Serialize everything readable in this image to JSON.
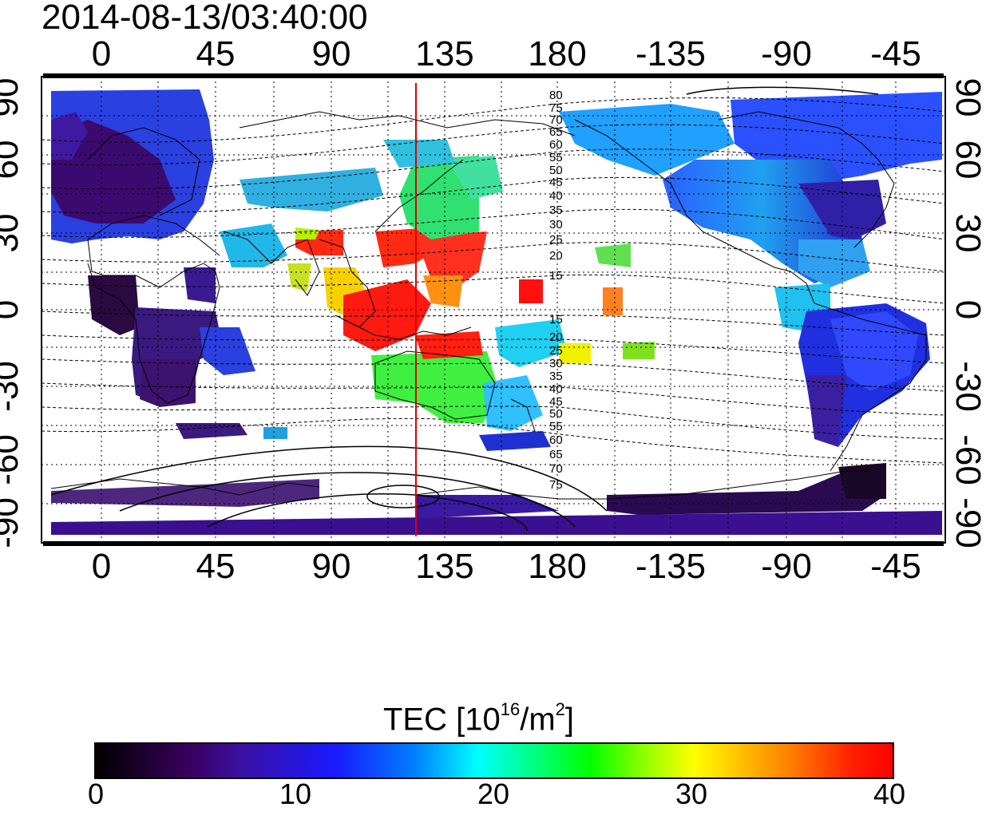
{
  "timestamp": "2014-08-13/03:40:00",
  "map": {
    "lon_ticks_top": [
      "0",
      "45",
      "90",
      "135",
      "180",
      "-135",
      "-90",
      "-45"
    ],
    "lon_ticks_bottom": [
      "0",
      "45",
      "90",
      "135",
      "180",
      "-135",
      "-90",
      "-45"
    ],
    "lat_ticks_left": [
      "90",
      "60",
      "30",
      "0",
      "-30",
      "-60",
      "-90"
    ],
    "lat_ticks_right": [
      "90",
      "60",
      "30",
      "0",
      "-30",
      "-60",
      "-90"
    ],
    "contour_labels_north": [
      "80",
      "75",
      "70",
      "65",
      "60",
      "55",
      "50",
      "45",
      "40",
      "35",
      "30",
      "25",
      "20",
      "15"
    ],
    "contour_labels_south": [
      "15",
      "20",
      "25",
      "30",
      "35",
      "40",
      "45",
      "50",
      "55",
      "60",
      "65",
      "70",
      "75"
    ],
    "marker_line_color": "#e00000"
  },
  "colorbar": {
    "title_prefix": "TEC  [10",
    "title_exp1": "16",
    "title_mid": "/m",
    "title_exp2": "2",
    "title_suffix": "]",
    "ticks": [
      "0",
      "10",
      "20",
      "30",
      "40"
    ]
  }
}
